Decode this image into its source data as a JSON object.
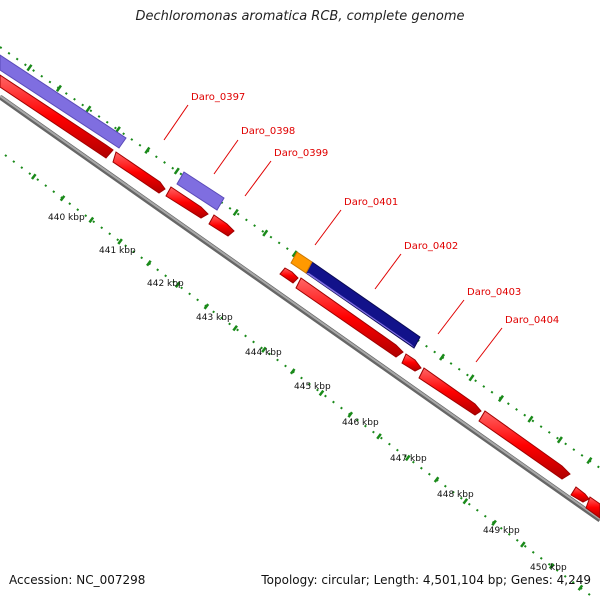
{
  "title": "Dechloromonas aromatica RCB, complete genome",
  "footer": {
    "accession": "Accession: NC_007298",
    "topology": "Topology: circular; Length: 4,501,104 bp; Genes: 4,249"
  },
  "genes": [
    {
      "label": "Daro_0397"
    },
    {
      "label": "Daro_0398"
    },
    {
      "label": "Daro_0399"
    },
    {
      "label": "Daro_0401"
    },
    {
      "label": "Daro_0402"
    },
    {
      "label": "Daro_0403"
    },
    {
      "label": "Daro_0404"
    }
  ],
  "ticks": [
    "440 kbp",
    "441 kbp",
    "442 kbp",
    "443 kbp",
    "444 kbp",
    "445 kbp",
    "446 kbp",
    "447 kbp",
    "448 kbp",
    "449 kbp",
    "450 kbp"
  ],
  "colors": {
    "cds": "#ff0000",
    "lavender_feature": "#8070e0",
    "navy_feature": "#12128a",
    "orange_feature": "#ff9900",
    "backbone": "#808080",
    "tick_marks": "#1a8a1a",
    "gene_label": "#e00000"
  }
}
